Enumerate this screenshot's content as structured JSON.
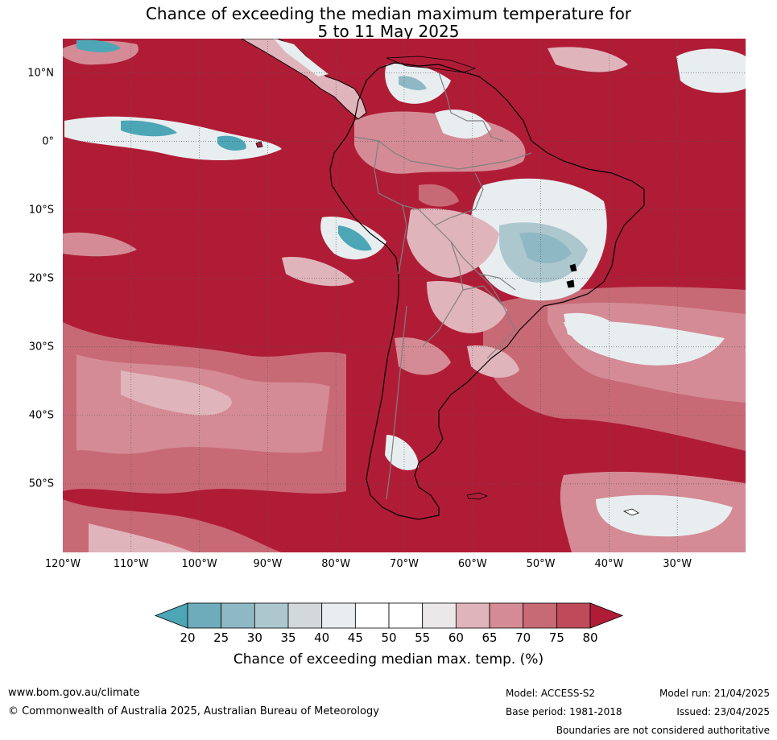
{
  "title_line1": "Chance of exceeding the median maximum temperature for",
  "title_line2": "5 to 11 May 2025",
  "map": {
    "lon_range": [
      -120,
      -20
    ],
    "lat_range": [
      -60,
      15
    ],
    "lat_labels": [
      "10°N",
      "0°",
      "10°S",
      "20°S",
      "30°S",
      "40°S",
      "50°S"
    ],
    "lon_labels": [
      "120°W",
      "110°W",
      "100°W",
      "90°W",
      "80°W",
      "70°W",
      "60°W",
      "50°W",
      "40°W",
      "30°W"
    ],
    "colors": {
      "above80": "#b01c36",
      "land_outline": "#000000",
      "borders": "#808080",
      "grid": "#555555"
    }
  },
  "colorbar": {
    "ticks": [
      "20",
      "25",
      "30",
      "35",
      "40",
      "45",
      "50",
      "55",
      "60",
      "65",
      "70",
      "75",
      "80"
    ],
    "colors": [
      "#4da6b6",
      "#6eacbb",
      "#8eb8c4",
      "#adc7cf",
      "#d3d8da",
      "#e8eef0",
      "#ffffff",
      "#ffffff",
      "#ebe8e9",
      "#e0b4bb",
      "#d48b95",
      "#c86a76",
      "#bf4a5a",
      "#b01c36"
    ],
    "label": "Chance of exceeding median max. temp. (%)"
  },
  "footer": {
    "website": "www.bom.gov.au/climate",
    "copyright": "© Commonwealth of Australia 2025, Australian Bureau of Meteorology",
    "model": "Model: ACCESS-S2",
    "base_period": "Base period: 1981-2018",
    "model_run": "Model run: 21/04/2025",
    "issued": "Issued: 23/04/2025",
    "disclaimer": "Boundaries are not considered authoritative"
  }
}
